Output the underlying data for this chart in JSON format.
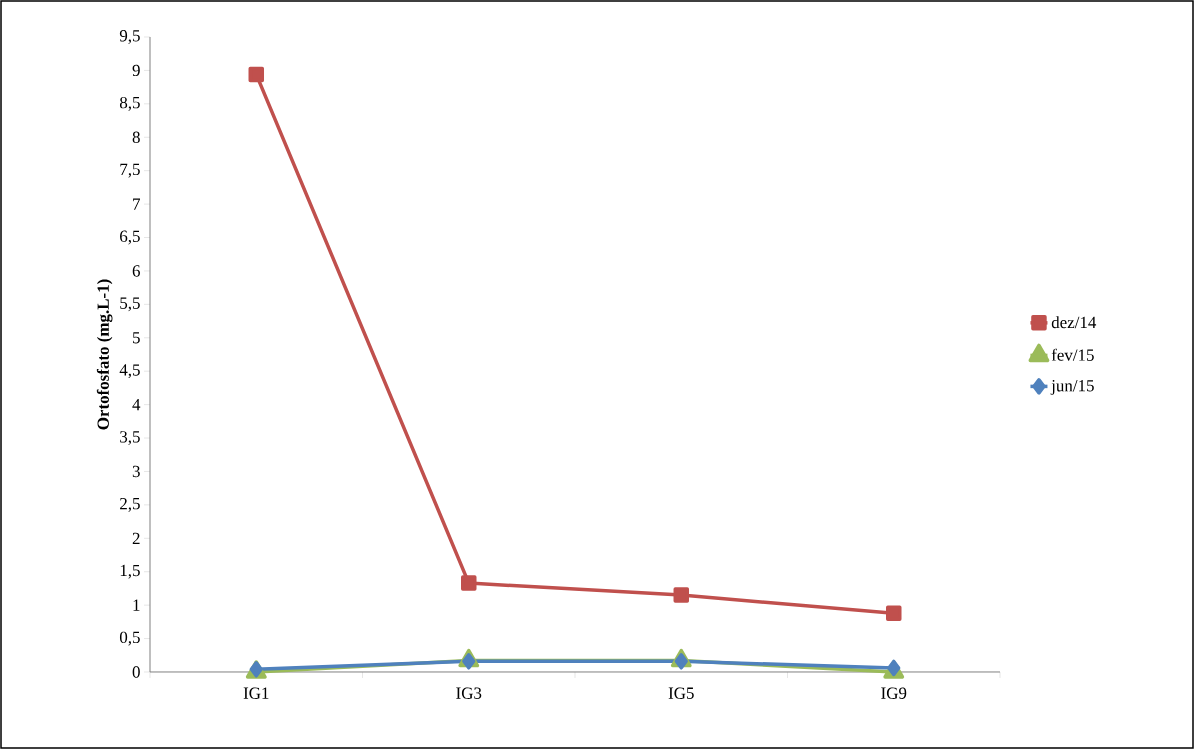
{
  "chart_data": {
    "type": "line",
    "ylabel": "Ortofosfato (mg.L-1)",
    "categories": [
      "IG1",
      "IG3",
      "IG5",
      "IG9"
    ],
    "series": [
      {
        "name": "dez/14",
        "color": "#c0504d",
        "marker": "square",
        "values": [
          8.94,
          1.33,
          1.15,
          0.88
        ]
      },
      {
        "name": "fev/15",
        "color": "#9bbb59",
        "marker": "triangle",
        "values": [
          0.0,
          0.17,
          0.17,
          0.0
        ]
      },
      {
        "name": "jun/15",
        "color": "#4f81bd",
        "marker": "diamond",
        "values": [
          0.04,
          0.16,
          0.16,
          0.06
        ]
      }
    ],
    "ylim": [
      0,
      9.5
    ],
    "yticks": [
      {
        "value": 0,
        "label": "0"
      },
      {
        "value": 0.5,
        "label": "0,5"
      },
      {
        "value": 1,
        "label": "1"
      },
      {
        "value": 1.5,
        "label": "1,5"
      },
      {
        "value": 2,
        "label": "2"
      },
      {
        "value": 2.5,
        "label": "2,5"
      },
      {
        "value": 3,
        "label": "3"
      },
      {
        "value": 3.5,
        "label": "3,5"
      },
      {
        "value": 4,
        "label": "4"
      },
      {
        "value": 4.5,
        "label": "4,5"
      },
      {
        "value": 5,
        "label": "5"
      },
      {
        "value": 5.5,
        "label": "5,5"
      },
      {
        "value": 6,
        "label": "6"
      },
      {
        "value": 6.5,
        "label": "6,5"
      },
      {
        "value": 7,
        "label": "7"
      },
      {
        "value": 7.5,
        "label": "7,5"
      },
      {
        "value": 8,
        "label": "8"
      },
      {
        "value": 8.5,
        "label": "8,5"
      },
      {
        "value": 9,
        "label": "9"
      },
      {
        "value": 9.5,
        "label": "9,5"
      }
    ],
    "grid": false,
    "legend": "right",
    "line_style": "solid"
  }
}
